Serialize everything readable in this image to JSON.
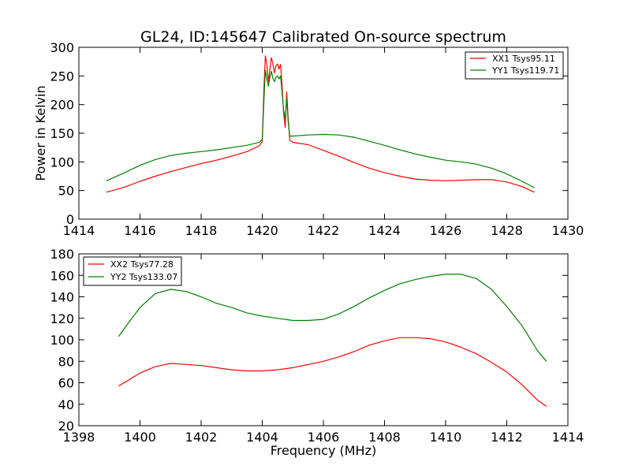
{
  "title": "GL24, ID:145647 Calibrated On-source spectrum",
  "chart_data": [
    {
      "type": "line",
      "title": "GL24, ID:145647 Calibrated On-source spectrum",
      "xlabel": "",
      "ylabel": "Power in Kelvin",
      "xlim": [
        1414,
        1430
      ],
      "ylim": [
        0,
        300
      ],
      "xticks": [
        1414,
        1416,
        1418,
        1420,
        1422,
        1424,
        1426,
        1428,
        1430
      ],
      "yticks": [
        0,
        50,
        100,
        150,
        200,
        250,
        300
      ],
      "grid": false,
      "legend_position": "top-right",
      "series": [
        {
          "name": "XX1 Tsys95.11",
          "color": "#ff0000",
          "points": [
            [
              1414.9,
              47
            ],
            [
              1415.5,
              56
            ],
            [
              1416,
              66
            ],
            [
              1416.5,
              75
            ],
            [
              1417,
              83
            ],
            [
              1417.5,
              90
            ],
            [
              1418,
              97
            ],
            [
              1418.5,
              103
            ],
            [
              1419,
              110
            ],
            [
              1419.5,
              118
            ],
            [
              1419.9,
              128
            ],
            [
              1420.0,
              135
            ],
            [
              1420.05,
              220
            ],
            [
              1420.1,
              285
            ],
            [
              1420.15,
              270
            ],
            [
              1420.2,
              240
            ],
            [
              1420.25,
              262
            ],
            [
              1420.3,
              282
            ],
            [
              1420.35,
              270
            ],
            [
              1420.4,
              255
            ],
            [
              1420.45,
              268
            ],
            [
              1420.5,
              271
            ],
            [
              1420.55,
              262
            ],
            [
              1420.6,
              270
            ],
            [
              1420.65,
              232
            ],
            [
              1420.7,
              185
            ],
            [
              1420.75,
              160
            ],
            [
              1420.8,
              222
            ],
            [
              1420.85,
              175
            ],
            [
              1420.9,
              138
            ],
            [
              1421,
              134
            ],
            [
              1421.5,
              130
            ],
            [
              1422,
              120
            ],
            [
              1422.5,
              110
            ],
            [
              1423,
              99
            ],
            [
              1423.5,
              89
            ],
            [
              1424,
              81
            ],
            [
              1424.5,
              75
            ],
            [
              1425,
              70
            ],
            [
              1425.5,
              68
            ],
            [
              1426,
              67
            ],
            [
              1426.5,
              68
            ],
            [
              1427,
              69
            ],
            [
              1427.5,
              69
            ],
            [
              1428,
              65
            ],
            [
              1428.5,
              57
            ],
            [
              1428.9,
              47
            ]
          ]
        },
        {
          "name": "YY1 Tsys119.71",
          "color": "#008000",
          "points": [
            [
              1414.9,
              67
            ],
            [
              1415.5,
              81
            ],
            [
              1416,
              94
            ],
            [
              1416.5,
              104
            ],
            [
              1417,
              111
            ],
            [
              1417.5,
              115
            ],
            [
              1418,
              118
            ],
            [
              1418.5,
              121
            ],
            [
              1419,
              125
            ],
            [
              1419.5,
              129
            ],
            [
              1419.9,
              134
            ],
            [
              1420.0,
              139
            ],
            [
              1420.05,
              200
            ],
            [
              1420.1,
              260
            ],
            [
              1420.15,
              245
            ],
            [
              1420.2,
              232
            ],
            [
              1420.25,
              248
            ],
            [
              1420.3,
              258
            ],
            [
              1420.35,
              245
            ],
            [
              1420.4,
              240
            ],
            [
              1420.45,
              248
            ],
            [
              1420.5,
              250
            ],
            [
              1420.55,
              245
            ],
            [
              1420.6,
              250
            ],
            [
              1420.65,
              220
            ],
            [
              1420.7,
              190
            ],
            [
              1420.75,
              175
            ],
            [
              1420.8,
              210
            ],
            [
              1420.85,
              170
            ],
            [
              1420.9,
              145
            ],
            [
              1421,
              145
            ],
            [
              1421.5,
              147
            ],
            [
              1422,
              148
            ],
            [
              1422.5,
              147
            ],
            [
              1423,
              143
            ],
            [
              1423.5,
              136
            ],
            [
              1424,
              129
            ],
            [
              1424.5,
              121
            ],
            [
              1425,
              114
            ],
            [
              1425.5,
              108
            ],
            [
              1426,
              103
            ],
            [
              1426.5,
              100
            ],
            [
              1427,
              96
            ],
            [
              1427.5,
              89
            ],
            [
              1428,
              79
            ],
            [
              1428.5,
              66
            ],
            [
              1428.9,
              55
            ]
          ]
        }
      ]
    },
    {
      "type": "line",
      "title": "",
      "xlabel": "Frequency (MHz)",
      "ylabel": "",
      "xlim": [
        1398,
        1414
      ],
      "ylim": [
        20,
        180
      ],
      "xticks": [
        1398,
        1400,
        1402,
        1404,
        1406,
        1408,
        1410,
        1412,
        1414
      ],
      "yticks": [
        20,
        40,
        60,
        80,
        100,
        120,
        140,
        160,
        180
      ],
      "grid": false,
      "legend_position": "top-left",
      "series": [
        {
          "name": "XX2 Tsys77.28",
          "color": "#ff0000",
          "points": [
            [
              1399.3,
              57
            ],
            [
              1399.6,
              62
            ],
            [
              1400,
              69
            ],
            [
              1400.5,
              75
            ],
            [
              1401,
              78
            ],
            [
              1401.5,
              77
            ],
            [
              1402,
              76
            ],
            [
              1402.5,
              74
            ],
            [
              1403,
              72
            ],
            [
              1403.5,
              71
            ],
            [
              1404,
              71
            ],
            [
              1404.5,
              72
            ],
            [
              1405,
              74
            ],
            [
              1405.5,
              77
            ],
            [
              1406,
              80
            ],
            [
              1406.5,
              84
            ],
            [
              1407,
              89
            ],
            [
              1407.5,
              95
            ],
            [
              1408,
              99
            ],
            [
              1408.5,
              102
            ],
            [
              1409,
              102
            ],
            [
              1409.5,
              101
            ],
            [
              1410,
              98
            ],
            [
              1410.5,
              93
            ],
            [
              1411,
              87
            ],
            [
              1411.5,
              79
            ],
            [
              1412,
              70
            ],
            [
              1412.5,
              58
            ],
            [
              1413,
              44
            ],
            [
              1413.3,
              38
            ]
          ]
        },
        {
          "name": "YY2 Tsys133.07",
          "color": "#008000",
          "points": [
            [
              1399.3,
              103
            ],
            [
              1399.6,
              115
            ],
            [
              1400,
              130
            ],
            [
              1400.5,
              143
            ],
            [
              1401,
              147
            ],
            [
              1401.5,
              145
            ],
            [
              1402,
              140
            ],
            [
              1402.5,
              134
            ],
            [
              1403,
              130
            ],
            [
              1403.5,
              125
            ],
            [
              1404,
              122
            ],
            [
              1404.5,
              120
            ],
            [
              1405,
              118
            ],
            [
              1405.5,
              118
            ],
            [
              1406,
              119
            ],
            [
              1406.5,
              124
            ],
            [
              1407,
              131
            ],
            [
              1407.5,
              139
            ],
            [
              1408,
              146
            ],
            [
              1408.5,
              152
            ],
            [
              1409,
              156
            ],
            [
              1409.5,
              159
            ],
            [
              1410,
              161
            ],
            [
              1410.5,
              161
            ],
            [
              1411,
              157
            ],
            [
              1411.5,
              147
            ],
            [
              1412,
              131
            ],
            [
              1412.5,
              113
            ],
            [
              1413,
              90
            ],
            [
              1413.3,
              80
            ]
          ]
        }
      ]
    }
  ]
}
